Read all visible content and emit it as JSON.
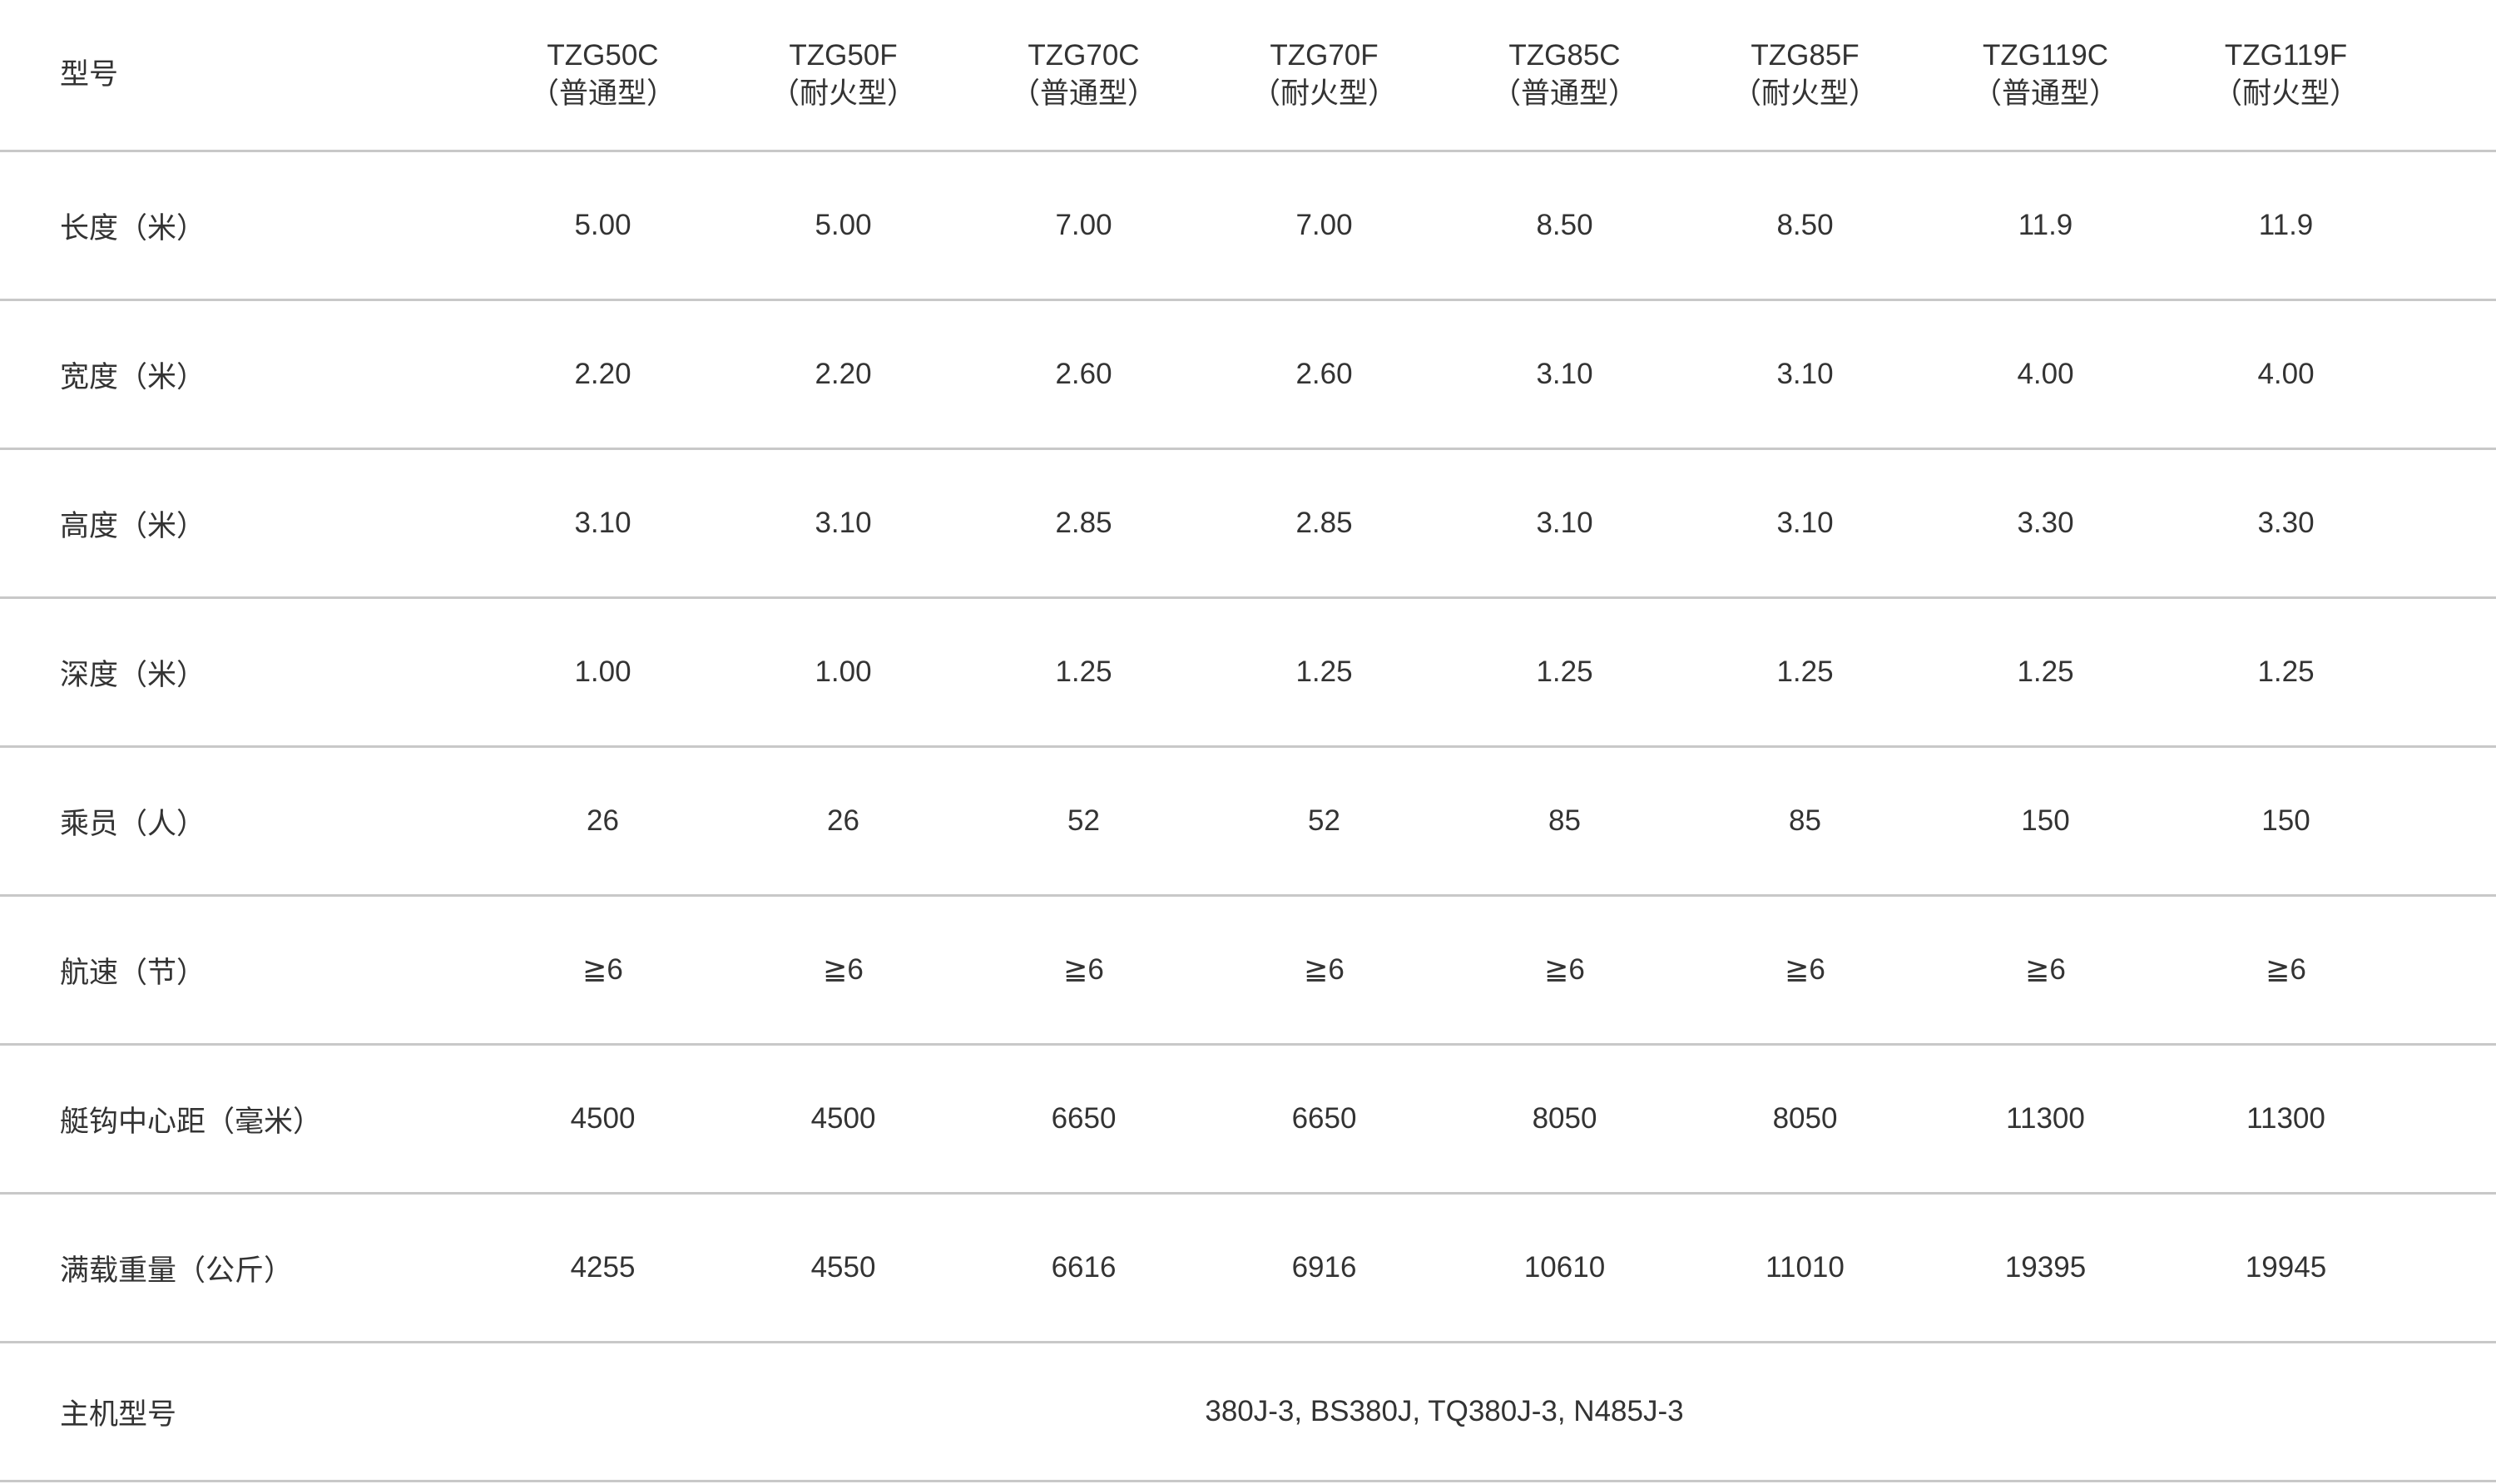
{
  "header": {
    "label": "型号",
    "models": [
      {
        "name": "TZG50C",
        "type": "（普通型）"
      },
      {
        "name": "TZG50F",
        "type": "（耐火型）"
      },
      {
        "name": "TZG70C",
        "type": "（普通型）"
      },
      {
        "name": "TZG70F",
        "type": "（耐火型）"
      },
      {
        "name": "TZG85C",
        "type": "（普通型）"
      },
      {
        "name": "TZG85F",
        "type": "（耐火型）"
      },
      {
        "name": "TZG119C",
        "type": "（普通型）"
      },
      {
        "name": "TZG119F",
        "type": "（耐火型）"
      }
    ]
  },
  "rows": [
    {
      "label": "长度（米）",
      "values": [
        "5.00",
        "5.00",
        "7.00",
        "7.00",
        "8.50",
        "8.50",
        "11.9",
        "11.9"
      ]
    },
    {
      "label": "宽度（米）",
      "values": [
        "2.20",
        "2.20",
        "2.60",
        "2.60",
        "3.10",
        "3.10",
        "4.00",
        "4.00"
      ]
    },
    {
      "label": "高度（米）",
      "values": [
        "3.10",
        "3.10",
        "2.85",
        "2.85",
        "3.10",
        "3.10",
        "3.30",
        "3.30"
      ]
    },
    {
      "label": "深度（米）",
      "values": [
        "1.00",
        "1.00",
        "1.25",
        "1.25",
        "1.25",
        "1.25",
        "1.25",
        "1.25"
      ]
    },
    {
      "label": "乘员（人）",
      "values": [
        "26",
        "26",
        "52",
        "52",
        "85",
        "85",
        "150",
        "150"
      ]
    },
    {
      "label": "航速（节）",
      "values": [
        "≧6",
        "≧6",
        "≧6",
        "≧6",
        "≧6",
        "≧6",
        "≧6",
        "≧6"
      ]
    },
    {
      "label": "艇钩中心距（毫米）",
      "values": [
        "4500",
        "4500",
        "6650",
        "6650",
        "8050",
        "8050",
        "11300",
        "11300"
      ]
    },
    {
      "label": "满载重量（公斤）",
      "values": [
        "4255",
        "4550",
        "6616",
        "6916",
        "10610",
        "11010",
        "19395",
        "19945"
      ]
    }
  ],
  "engine_row": {
    "label": "主机型号",
    "value": "380J-3, BS380J, TQ380J-3, N485J-3"
  }
}
